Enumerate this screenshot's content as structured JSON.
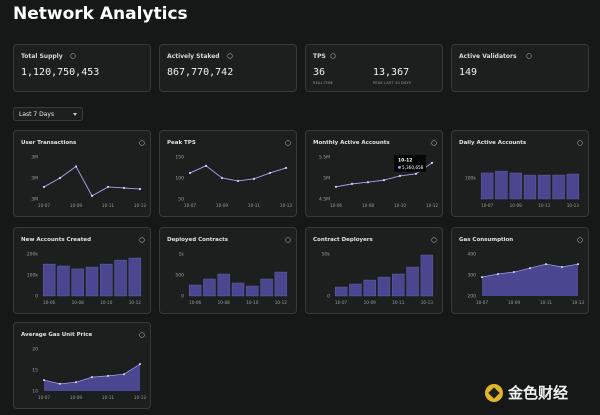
{
  "header": {
    "title": "Network Analytics"
  },
  "stats": [
    {
      "label": "Total Supply",
      "value": "1,120,750,453"
    },
    {
      "label": "Actively Staked",
      "value": "867,770,742"
    },
    {
      "label": "TPS",
      "items": [
        {
          "value": "36",
          "caption": "REAL-TIME"
        },
        {
          "value": "13,367",
          "caption": "PEAK LAST 30 DAYS"
        }
      ]
    },
    {
      "label": "Active Validators",
      "value": "149"
    }
  ],
  "filter": {
    "label": "Last 7 Days"
  },
  "watermark": {
    "text": "金色财经"
  },
  "chart_data": [
    {
      "type": "line",
      "title": "User Transactions",
      "categories": [
        "10-07",
        null,
        "10-09",
        null,
        "10-11",
        null,
        "10-13"
      ],
      "values": [
        2830000,
        3000000,
        3220000,
        2660000,
        2830000,
        2810000,
        2790000
      ],
      "color": "#a9a6f5",
      "ylim": [
        2600000,
        3400000
      ],
      "yticks": [
        {
          "value": 3400000,
          "label": "3M"
        },
        {
          "value": 3000000,
          "label": "3M"
        },
        {
          "value": 2600000,
          "label": "3M"
        }
      ]
    },
    {
      "type": "line",
      "title": "Peak TPS",
      "categories": [
        "10-07",
        null,
        "10-09",
        null,
        "10-11",
        null,
        "10-13"
      ],
      "values": [
        112,
        129,
        100,
        93,
        98,
        112,
        124
      ],
      "color": "#a9a6f5",
      "ylim": [
        50,
        150
      ],
      "yticks": [
        150,
        100,
        50
      ]
    },
    {
      "type": "line",
      "title": "Monthly Active Accounts",
      "categories": [
        "10-06",
        null,
        "10-08",
        null,
        "10-10",
        null,
        "10-12"
      ],
      "values": [
        4790000,
        4860000,
        4900000,
        4950000,
        5050000,
        5100000,
        5360658
      ],
      "value_labels": [
        null,
        null,
        null,
        null,
        null,
        null,
        "5,360,658"
      ],
      "color": "#a9a6f5",
      "ylim": [
        4500000,
        5500000
      ],
      "yticks": [
        {
          "value": 5500000,
          "label": "5.5M"
        },
        {
          "value": 5000000,
          "label": "5M"
        },
        {
          "value": 4500000,
          "label": "4.5M"
        }
      ]
    },
    {
      "type": "bar",
      "title": "Daily Active Accounts",
      "categories": [
        "10-07",
        null,
        "10-09",
        null,
        "10-11",
        null,
        "10-13"
      ],
      "values": [
        124000,
        133000,
        124000,
        114000,
        114000,
        114000,
        119000
      ],
      "color": "#4a4690",
      "ylim": [
        0,
        200000
      ],
      "yticks": [
        {
          "value": 100000,
          "label": "100k"
        }
      ]
    },
    {
      "type": "bar",
      "title": "New Accounts Created",
      "categories": [
        "10-06",
        null,
        "10-08",
        null,
        "10-10",
        null,
        "10-12"
      ],
      "values": [
        152000,
        143000,
        129000,
        138000,
        152000,
        171000,
        181000
      ],
      "color": "#4a4690",
      "ylim": [
        0,
        200000
      ],
      "yticks": [
        {
          "value": 200000,
          "label": "200k"
        },
        {
          "value": 100000,
          "label": "100k"
        },
        0
      ]
    },
    {
      "type": "bar",
      "title": "Deployed Contracts",
      "categories": [
        "10-06",
        null,
        "10-08",
        null,
        "10-10",
        null,
        "10-12"
      ],
      "values": [
        262,
        405,
        524,
        310,
        238,
        405,
        571
      ],
      "color": "#4a4690",
      "ylim": [
        0,
        1000
      ],
      "yticks": [
        {
          "value": 1000,
          "label": "1k"
        },
        500,
        0
      ]
    },
    {
      "type": "bar",
      "title": "Contract Deployers",
      "categories": [
        "10-07",
        null,
        "10-09",
        null,
        "10-11",
        null,
        "10-13"
      ],
      "values": [
        10700,
        14300,
        19000,
        22600,
        26200,
        34500,
        48800
      ],
      "color": "#4a4690",
      "ylim": [
        0,
        50000
      ],
      "yticks": [
        {
          "value": 50000,
          "label": "50k"
        },
        0
      ]
    },
    {
      "type": "area",
      "title": "Gas Consumption",
      "categories": [
        "10-07",
        null,
        "10-09",
        null,
        "10-11",
        null,
        "10-13"
      ],
      "values": [
        290,
        305,
        314,
        333,
        352,
        338,
        352
      ],
      "color": "#4a4690",
      "ylim": [
        200,
        400
      ],
      "yticks": [
        400,
        300,
        200
      ]
    },
    {
      "type": "area",
      "title": "Average Gas Unit Price",
      "categories": [
        "10-07",
        null,
        "10-09",
        null,
        "10-11",
        null,
        "10-13"
      ],
      "values": [
        12.6,
        11.7,
        12.1,
        13.3,
        13.6,
        14.0,
        16.4
      ],
      "color": "#4a4690",
      "ylim": [
        10,
        20
      ],
      "yticks": [
        20,
        15,
        10
      ]
    }
  ]
}
